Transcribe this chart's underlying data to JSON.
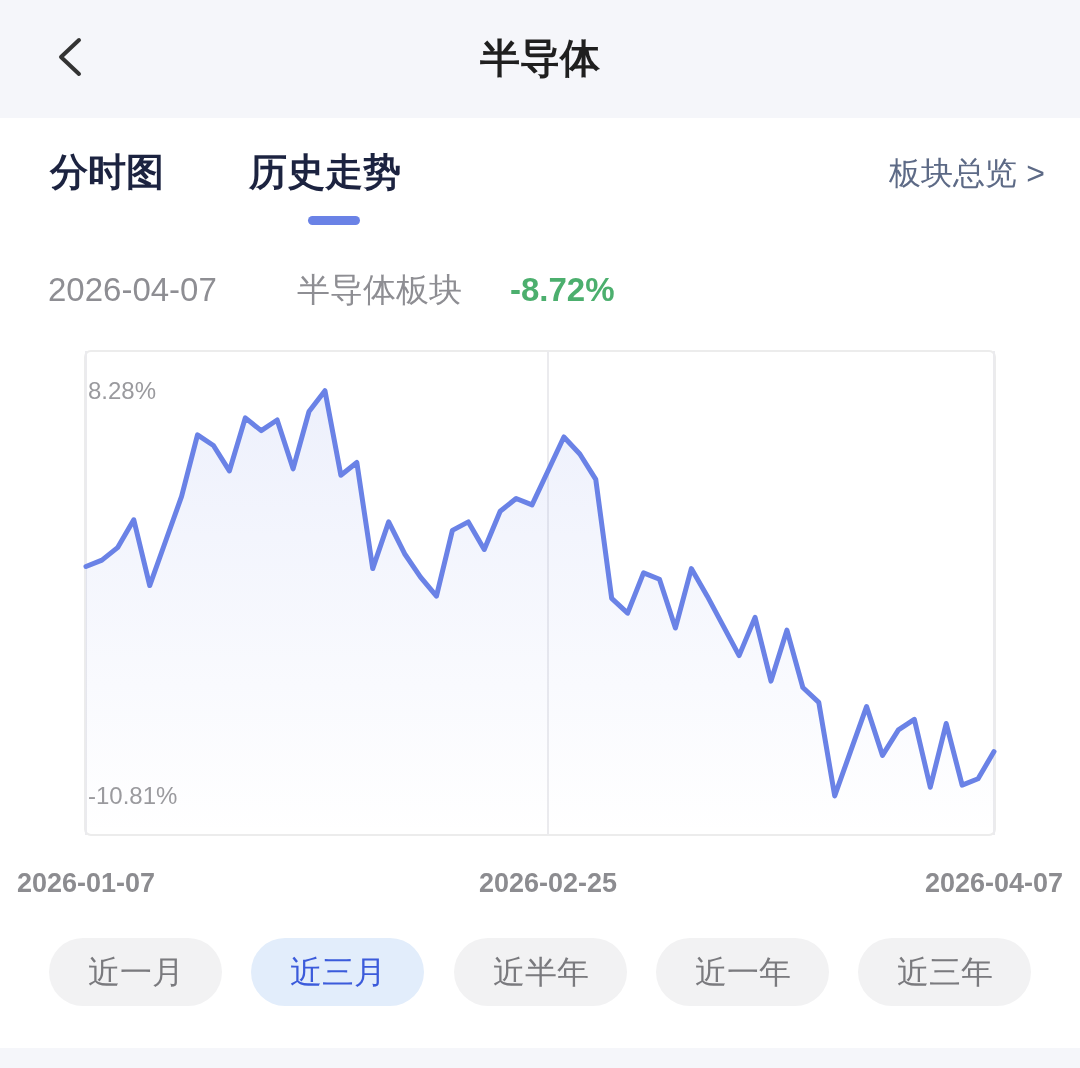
{
  "chart_data": {
    "type": "line",
    "title": "半导体",
    "categories": [
      "2026-01-07",
      null,
      null,
      null,
      null,
      null,
      null,
      null,
      null,
      null,
      null,
      null,
      null,
      null,
      null,
      null,
      null,
      null,
      null,
      null,
      null,
      null,
      null,
      null,
      null,
      null,
      null,
      null,
      null,
      "2026-02-25",
      null,
      null,
      null,
      null,
      null,
      null,
      null,
      null,
      null,
      null,
      null,
      null,
      null,
      null,
      null,
      null,
      null,
      null,
      null,
      null,
      null,
      null,
      null,
      null,
      null,
      null,
      null,
      "2026-04-07"
    ],
    "values": [
      0.0,
      0.3,
      0.9,
      2.2,
      -0.9,
      1.2,
      3.3,
      6.2,
      5.7,
      4.5,
      7.0,
      6.4,
      6.9,
      4.6,
      7.3,
      8.28,
      4.3,
      4.9,
      -0.1,
      2.1,
      0.6,
      -0.5,
      -1.4,
      1.7,
      2.1,
      0.8,
      2.6,
      3.2,
      2.9,
      4.5,
      6.1,
      5.3,
      4.1,
      -1.5,
      -2.2,
      -0.3,
      -0.6,
      -2.9,
      -0.1,
      -1.4,
      -2.8,
      -4.2,
      -2.4,
      -5.4,
      -3.0,
      -5.7,
      -6.4,
      -10.81,
      -8.7,
      -6.6,
      -8.9,
      -7.7,
      -7.2,
      -10.4,
      -7.4,
      -10.3,
      -10.0,
      -8.72
    ],
    "color": "#6a82e6",
    "ylim": [
      -12.65,
      10.15
    ],
    "yticks": [
      {
        "value": 8.28,
        "label": "8.28%"
      },
      {
        "value": -10.81,
        "label": "-10.81%"
      }
    ],
    "grid": "x",
    "annotations": [
      "分时图",
      "历史走势",
      "板块总览 >",
      "2026-04-07",
      "半导体板块",
      "-8.72%",
      "近一月",
      "近三月",
      "近半年",
      "近一年",
      "近三年"
    ]
  }
}
